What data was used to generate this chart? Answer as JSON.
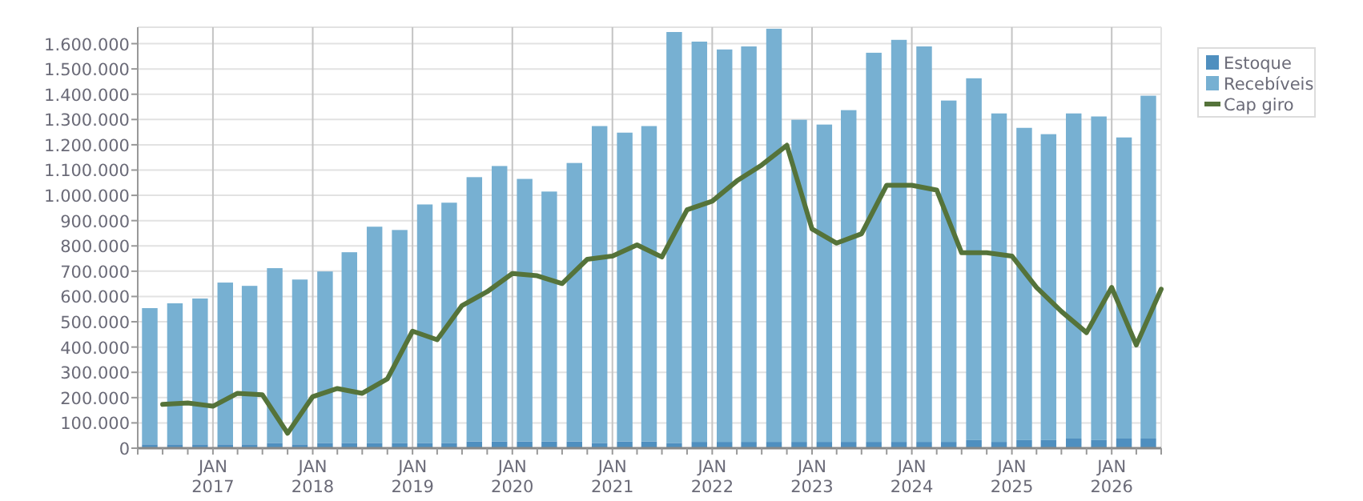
{
  "chart_data": {
    "type": "bar",
    "stacked": true,
    "grid": true,
    "legend": "top right",
    "x": [
      "2016-05-15",
      "2016-08-15",
      "2016-11-15",
      "2017-02-15",
      "2017-05-15",
      "2017-08-15",
      "2017-11-15",
      "2018-02-15",
      "2018-05-15",
      "2018-08-15",
      "2018-11-15",
      "2019-02-15",
      "2019-05-15",
      "2019-08-15",
      "2019-11-15",
      "2020-02-15",
      "2020-05-15",
      "2020-08-15",
      "2020-11-15",
      "2021-02-15",
      "2021-05-15",
      "2021-08-15",
      "2021-11-15",
      "2022-02-15",
      "2022-05-15",
      "2022-08-15",
      "2022-11-15",
      "2023-02-15",
      "2023-05-15",
      "2023-08-15",
      "2023-11-15",
      "2024-02-15",
      "2024-05-15",
      "2024-08-15",
      "2024-11-15",
      "2025-02-15",
      "2025-05-15",
      "2025-08-15",
      "2025-11-15",
      "2026-02-15",
      "2026-05-15"
    ],
    "xlim": [
      "2016-04-01",
      "2026-07-01"
    ],
    "xticks": [
      {
        "value": "2016-04-01",
        "label": null
      },
      {
        "value": "2016-07-01",
        "label": null
      },
      {
        "value": "2016-10-01",
        "label": null
      },
      {
        "value": "2017-01-01",
        "label": "JAN\n2017"
      },
      {
        "value": "2017-04-01",
        "label": null
      },
      {
        "value": "2017-07-01",
        "label": null
      },
      {
        "value": "2017-10-01",
        "label": null
      },
      {
        "value": "2018-01-01",
        "label": "JAN\n2018"
      },
      {
        "value": "2018-04-01",
        "label": null
      },
      {
        "value": "2018-07-01",
        "label": null
      },
      {
        "value": "2018-10-01",
        "label": null
      },
      {
        "value": "2019-01-01",
        "label": "JAN\n2019"
      },
      {
        "value": "2019-04-01",
        "label": null
      },
      {
        "value": "2019-07-01",
        "label": null
      },
      {
        "value": "2019-10-01",
        "label": null
      },
      {
        "value": "2020-01-01",
        "label": "JAN\n2020"
      },
      {
        "value": "2020-04-01",
        "label": null
      },
      {
        "value": "2020-07-01",
        "label": null
      },
      {
        "value": "2020-10-01",
        "label": null
      },
      {
        "value": "2021-01-01",
        "label": "JAN\n2021"
      },
      {
        "value": "2021-04-01",
        "label": null
      },
      {
        "value": "2021-07-01",
        "label": null
      },
      {
        "value": "2021-10-01",
        "label": null
      },
      {
        "value": "2022-01-01",
        "label": "JAN\n2022"
      },
      {
        "value": "2022-04-01",
        "label": null
      },
      {
        "value": "2022-07-01",
        "label": null
      },
      {
        "value": "2022-10-01",
        "label": null
      },
      {
        "value": "2023-01-01",
        "label": "JAN\n2023"
      },
      {
        "value": "2023-04-01",
        "label": null
      },
      {
        "value": "2023-07-01",
        "label": null
      },
      {
        "value": "2023-10-01",
        "label": null
      },
      {
        "value": "2024-01-01",
        "label": "JAN\n2024"
      },
      {
        "value": "2024-04-01",
        "label": null
      },
      {
        "value": "2024-07-01",
        "label": null
      },
      {
        "value": "2024-10-01",
        "label": null
      },
      {
        "value": "2025-01-01",
        "label": "JAN\n2025"
      },
      {
        "value": "2025-04-01",
        "label": null
      },
      {
        "value": "2025-07-01",
        "label": null
      },
      {
        "value": "2025-10-01",
        "label": null
      },
      {
        "value": "2026-01-01",
        "label": "JAN\n2026"
      },
      {
        "value": "2026-04-01",
        "label": null
      },
      {
        "value": "2026-07-01",
        "label": null
      }
    ],
    "ylim": [
      0,
      1665000
    ],
    "yticks": [
      0,
      {
        "value": 100000,
        "label": "100.000"
      },
      {
        "value": 200000,
        "label": "200.000"
      },
      {
        "value": 300000,
        "label": "300.000"
      },
      {
        "value": 400000,
        "label": "400.000"
      },
      {
        "value": 500000,
        "label": "500.000"
      },
      {
        "value": 600000,
        "label": "600.000"
      },
      {
        "value": 700000,
        "label": "700.000"
      },
      {
        "value": 800000,
        "label": "800.000"
      },
      {
        "value": 900000,
        "label": "900.000"
      },
      {
        "value": 1000000,
        "label": "1.000.000"
      },
      {
        "value": 1100000,
        "label": "1.100.000"
      },
      {
        "value": 1200000,
        "label": "1.200.000"
      },
      {
        "value": 1300000,
        "label": "1.300.000"
      },
      {
        "value": 1400000,
        "label": "1.400.000"
      },
      {
        "value": 1500000,
        "label": "1.500.000"
      },
      {
        "value": 1600000,
        "label": "1.600.000"
      }
    ],
    "series": [
      {
        "name": "Estoque",
        "color": "#4f8fbf",
        "values": [
          15000,
          15000,
          15000,
          15000,
          15000,
          21000,
          15000,
          21000,
          21000,
          21000,
          21000,
          21000,
          21000,
          27000,
          27000,
          27000,
          27000,
          27000,
          21000,
          27000,
          27000,
          21000,
          25000,
          25000,
          25000,
          25000,
          25000,
          25000,
          25000,
          25000,
          25000,
          25000,
          25000,
          32000,
          25000,
          32000,
          32000,
          38000,
          32000,
          38000,
          38000
        ]
      },
      {
        "name": "Recebíveis",
        "color": "#77b0d2",
        "values": [
          539000,
          558000,
          577000,
          640000,
          627000,
          691000,
          652000,
          678000,
          754000,
          855000,
          842000,
          943000,
          950000,
          1045000,
          1089000,
          1038000,
          988000,
          1101000,
          1253000,
          1221000,
          1247000,
          1625000,
          1583000,
          1552000,
          1564000,
          1634000,
          1274000,
          1255000,
          1312000,
          1539000,
          1590000,
          1564000,
          1350000,
          1431000,
          1299000,
          1235000,
          1210000,
          1286000,
          1280000,
          1191000,
          1356000
        ]
      },
      {
        "name": "Cap giro",
        "type": "line",
        "color": "#55733a",
        "x": [
          "2016-07-01",
          "2016-10-01",
          "2017-01-01",
          "2017-04-01",
          "2017-07-01",
          "2017-10-01",
          "2018-01-01",
          "2018-04-01",
          "2018-07-01",
          "2018-10-01",
          "2019-01-01",
          "2019-04-01",
          "2019-07-01",
          "2019-10-01",
          "2020-01-01",
          "2020-04-01",
          "2020-07-01",
          "2020-10-01",
          "2021-01-01",
          "2021-04-01",
          "2021-07-01",
          "2021-10-01",
          "2022-01-01",
          "2022-04-01",
          "2022-07-01",
          "2022-10-01",
          "2023-01-01",
          "2023-04-01",
          "2023-07-01",
          "2023-10-01",
          "2024-01-01",
          "2024-04-01",
          "2024-07-01",
          "2024-10-01",
          "2025-01-01",
          "2025-04-01",
          "2025-07-01",
          "2025-10-01",
          "2026-01-01",
          "2026-04-01",
          "2026-07-01"
        ],
        "values": [
          173000,
          179000,
          166000,
          217000,
          211000,
          59000,
          204000,
          236000,
          217000,
          274000,
          463000,
          429000,
          564000,
          619000,
          691000,
          682000,
          651000,
          747000,
          760000,
          804000,
          756000,
          943000,
          977000,
          1057000,
          1120000,
          1198000,
          867000,
          811000,
          848000,
          1040000,
          1040000,
          1021000,
          773000,
          773000,
          760000,
          636000,
          541000,
          457000,
          636000,
          408000,
          629000
        ]
      }
    ]
  }
}
